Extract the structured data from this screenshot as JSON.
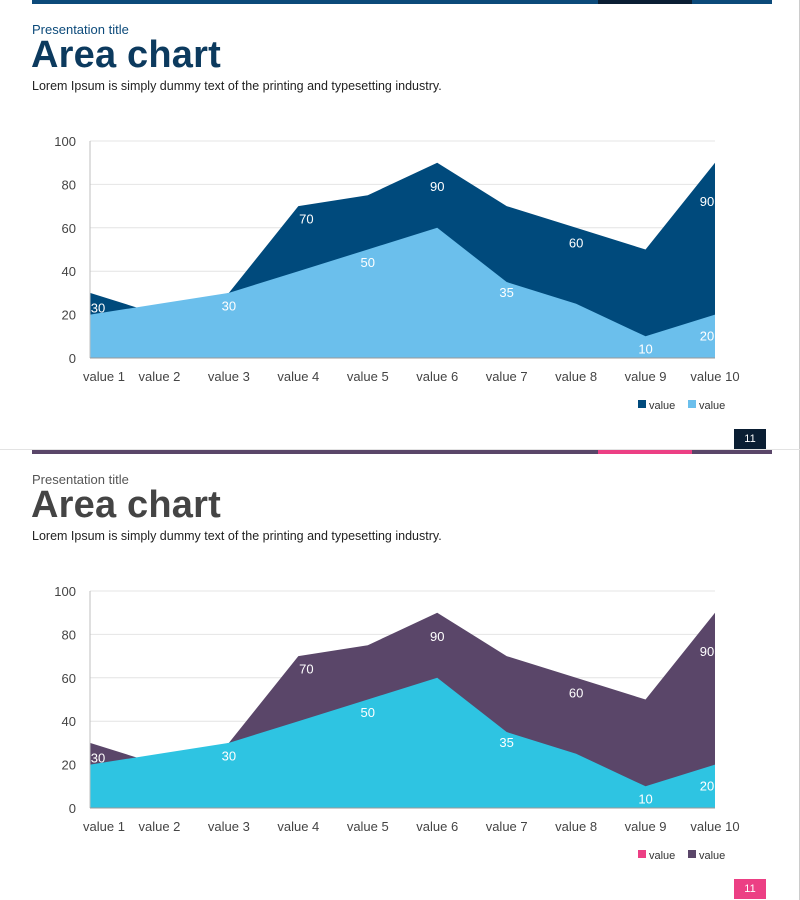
{
  "slides": [
    {
      "subtitle": "Presentation title",
      "title": "Area chart",
      "description": "Lorem Ipsum is simply dummy text of the printing and typesetting industry.",
      "page_number": "11",
      "colors": {
        "accent_text": "#0c4a7a",
        "title": "#0c3a5e",
        "top_bar": "#0c4a7a",
        "top_bar_highlight": "#0a1e33",
        "page_badge": "#0a1e33"
      }
    },
    {
      "subtitle": "Presentation title",
      "title": "Area chart",
      "description": "Lorem Ipsum is simply dummy text of the printing and typesetting industry.",
      "page_number": "11",
      "colors": {
        "accent_text": "#555555",
        "title": "#444444",
        "top_bar": "#5a4669",
        "top_bar_highlight": "#ec3f84",
        "page_badge": "#ec3f84"
      }
    }
  ],
  "chart_data": [
    {
      "type": "area",
      "categories": [
        "value 1",
        "value 2",
        "value 3",
        "value 4",
        "value 5",
        "value 6",
        "value 7",
        "value 8",
        "value 9",
        "value 10"
      ],
      "ylim": [
        0,
        100
      ],
      "yticks": [
        0,
        20,
        40,
        60,
        80,
        100
      ],
      "series": [
        {
          "name": "value",
          "values": [
            30,
            20,
            30,
            70,
            75,
            90,
            70,
            60,
            50,
            90
          ],
          "color": "#004a7c"
        },
        {
          "name": "value",
          "values": [
            20,
            25,
            30,
            40,
            50,
            60,
            35,
            25,
            10,
            20
          ],
          "color": "#6bbfec"
        }
      ],
      "data_labels": [
        {
          "index": 0,
          "text": "30"
        },
        {
          "index": 2,
          "text": "30"
        },
        {
          "index": 3,
          "text": "70"
        },
        {
          "index": 4,
          "text": "50"
        },
        {
          "index": 5,
          "text": "90"
        },
        {
          "index": 6,
          "text": "35"
        },
        {
          "index": 7,
          "text": "60"
        },
        {
          "index": 8,
          "text": "10"
        },
        {
          "index": 9,
          "text": "90"
        },
        {
          "index": 9,
          "text": "20"
        }
      ],
      "legend": {
        "placement": "bottom-right",
        "entries": [
          {
            "label": "value",
            "color": "#004a7c"
          },
          {
            "label": "value",
            "color": "#6bbfec"
          }
        ]
      }
    },
    {
      "type": "area",
      "categories": [
        "value 1",
        "value 2",
        "value 3",
        "value 4",
        "value 5",
        "value 6",
        "value 7",
        "value 8",
        "value 9",
        "value 10"
      ],
      "ylim": [
        0,
        100
      ],
      "yticks": [
        0,
        20,
        40,
        60,
        80,
        100
      ],
      "series": [
        {
          "name": "value",
          "values": [
            30,
            20,
            30,
            70,
            75,
            90,
            70,
            60,
            50,
            90
          ],
          "color": "#5a4669"
        },
        {
          "name": "value",
          "values": [
            20,
            25,
            30,
            40,
            50,
            60,
            35,
            25,
            10,
            20
          ],
          "color": "#2ec4e2"
        }
      ],
      "data_labels": [
        {
          "index": 0,
          "text": "30"
        },
        {
          "index": 2,
          "text": "30"
        },
        {
          "index": 3,
          "text": "70"
        },
        {
          "index": 4,
          "text": "50"
        },
        {
          "index": 5,
          "text": "90"
        },
        {
          "index": 6,
          "text": "35"
        },
        {
          "index": 7,
          "text": "60"
        },
        {
          "index": 8,
          "text": "10"
        },
        {
          "index": 9,
          "text": "90"
        },
        {
          "index": 9,
          "text": "20"
        }
      ],
      "legend": {
        "placement": "bottom-right",
        "entries": [
          {
            "label": "value",
            "color": "#ec3f84"
          },
          {
            "label": "value",
            "color": "#5a4669"
          }
        ]
      }
    }
  ]
}
